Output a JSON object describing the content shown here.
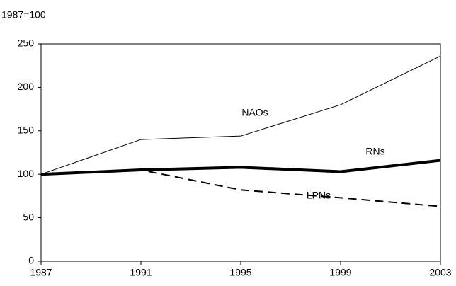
{
  "chart_data": {
    "type": "line",
    "y_label": "1987=100",
    "x": [
      1987,
      1991,
      1995,
      1999,
      2003
    ],
    "xlim": [
      1987,
      2003
    ],
    "xticks": [
      1987,
      1991,
      1995,
      1999,
      2003
    ],
    "ylim": [
      0,
      250
    ],
    "yticks": [
      0,
      50,
      100,
      150,
      200,
      250
    ],
    "series": [
      {
        "name": "NAOs",
        "color": "#000000",
        "linewidth": 1,
        "linestyle": "solid",
        "values": [
          100,
          140,
          144,
          180,
          236
        ]
      },
      {
        "name": "RNs",
        "color": "#000000",
        "linewidth": 4,
        "linestyle": "solid",
        "values": [
          100,
          105,
          108,
          103,
          116
        ]
      },
      {
        "name": "LPNs",
        "color": "#000000",
        "linewidth": 2,
        "linestyle": "dashed",
        "values": [
          100,
          105,
          82,
          73,
          63
        ]
      }
    ]
  }
}
